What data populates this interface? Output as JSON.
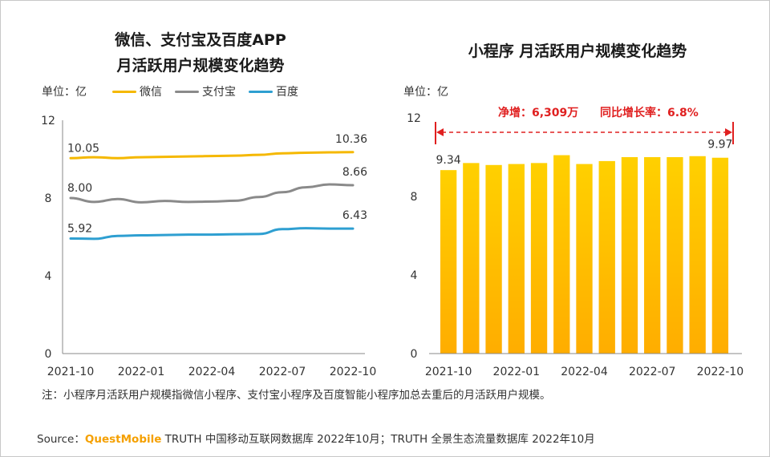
{
  "left_chart": {
    "title_line1": "微信、支付宝及百度APP",
    "title_line2": "月活跃用户规模变化趋势",
    "unit": "单位：亿",
    "chart_data": {
      "type": "line",
      "x": [
        "2021-10",
        "2021-11",
        "2021-12",
        "2022-01",
        "2022-02",
        "2022-03",
        "2022-04",
        "2022-05",
        "2022-06",
        "2022-07",
        "2022-08",
        "2022-09",
        "2022-10"
      ],
      "x_tick_labels": [
        "2021-10",
        "2022-01",
        "2022-04",
        "2022-07",
        "2022-10"
      ],
      "y_ticks": [
        "12",
        "8",
        "4",
        "0"
      ],
      "ylim": [
        0,
        12
      ],
      "series": [
        {
          "name": "微信",
          "color": "#f5b800",
          "values": [
            10.05,
            10.1,
            10.05,
            10.1,
            10.12,
            10.14,
            10.16,
            10.18,
            10.22,
            10.3,
            10.33,
            10.35,
            10.36
          ],
          "start_label": "10.05",
          "end_label": "10.36"
        },
        {
          "name": "支付宝",
          "color": "#8a8a8a",
          "values": [
            8.0,
            7.8,
            7.95,
            7.78,
            7.85,
            7.8,
            7.82,
            7.86,
            8.05,
            8.3,
            8.55,
            8.7,
            8.66
          ],
          "start_label": "8.00",
          "end_label": "8.66"
        },
        {
          "name": "百度",
          "color": "#2e9fd1",
          "values": [
            5.92,
            5.9,
            6.05,
            6.08,
            6.1,
            6.12,
            6.12,
            6.14,
            6.15,
            6.4,
            6.45,
            6.43,
            6.43
          ],
          "start_label": "5.92",
          "end_label": "6.43"
        }
      ]
    }
  },
  "right_chart": {
    "title": "小程序 月活跃用户规模变化趋势",
    "unit": "单位：亿",
    "annotation_net": "净增：6,309万",
    "annotation_yoy": "同比增长率：6.8%",
    "chart_data": {
      "type": "bar",
      "categories": [
        "2021-10",
        "2021-11",
        "2021-12",
        "2022-01",
        "2022-02",
        "2022-03",
        "2022-04",
        "2022-05",
        "2022-06",
        "2022-07",
        "2022-08",
        "2022-09",
        "2022-10"
      ],
      "values": [
        9.34,
        9.7,
        9.6,
        9.65,
        9.7,
        10.1,
        9.65,
        9.8,
        10.0,
        10.0,
        10.0,
        10.05,
        9.97
      ],
      "x_tick_labels": [
        "2021-10",
        "2022-01",
        "2022-04",
        "2022-07",
        "2022-10"
      ],
      "y_ticks": [
        "12",
        "8",
        "4",
        "0"
      ],
      "ylim": [
        0,
        12
      ],
      "first_label": "9.34",
      "last_label": "9.97",
      "bar_color_top": "#ffd000",
      "bar_color_bottom": "#ffad00",
      "annotation_color": "#e02020"
    }
  },
  "note": "注：小程序月活跃用户规模指微信小程序、支付宝小程序及百度智能小程序加总去重后的月活跃用户规模。",
  "source": {
    "prefix": "Source：",
    "brand": "QuestMobile",
    "text": " TRUTH 中国移动互联网数据库 2022年10月；TRUTH 全景生态流量数据库 2022年10月"
  }
}
